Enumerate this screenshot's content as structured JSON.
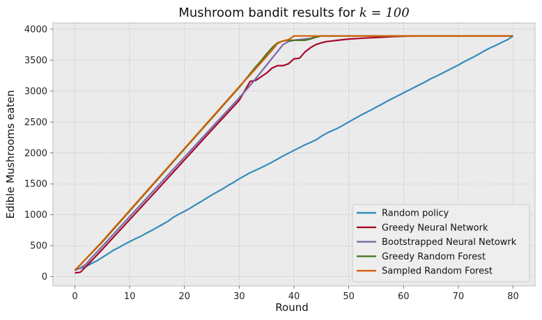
{
  "chart_data": {
    "type": "line",
    "title": "Mushroom bandit results for ",
    "title_math": "k = 100",
    "xlabel": "Round",
    "ylabel": "Edible Mushrooms eaten",
    "xlim": [
      -4,
      84
    ],
    "ylim": [
      -150,
      4100
    ],
    "xticks": [
      0,
      10,
      20,
      30,
      40,
      50,
      60,
      70,
      80
    ],
    "yticks": [
      0,
      500,
      1000,
      1500,
      2000,
      2500,
      3000,
      3500,
      4000
    ],
    "grid": true,
    "legend_position": "lower-right",
    "series": [
      {
        "name": "Random policy",
        "color": "#348ABD",
        "x": [
          0,
          1,
          2,
          3,
          4,
          5,
          6,
          7,
          8,
          9,
          10,
          11,
          12,
          13,
          14,
          15,
          16,
          17,
          18,
          19,
          20,
          21,
          22,
          23,
          24,
          25,
          26,
          27,
          28,
          29,
          30,
          31,
          32,
          33,
          34,
          35,
          36,
          37,
          38,
          39,
          40,
          41,
          42,
          43,
          44,
          45,
          46,
          47,
          48,
          49,
          50,
          51,
          52,
          53,
          54,
          55,
          56,
          57,
          58,
          59,
          60,
          61,
          62,
          63,
          64,
          65,
          66,
          67,
          68,
          69,
          70,
          71,
          72,
          73,
          74,
          75,
          76,
          77,
          78,
          79,
          80
        ],
        "y": [
          110,
          135,
          160,
          210,
          255,
          310,
          365,
          425,
          470,
          520,
          565,
          610,
          650,
          700,
          745,
          795,
          845,
          895,
          960,
          1010,
          1055,
          1105,
          1160,
          1210,
          1265,
          1320,
          1370,
          1420,
          1475,
          1525,
          1580,
          1630,
          1680,
          1720,
          1760,
          1805,
          1850,
          1900,
          1950,
          1995,
          2040,
          2085,
          2130,
          2170,
          2210,
          2270,
          2320,
          2360,
          2400,
          2450,
          2500,
          2550,
          2600,
          2645,
          2690,
          2740,
          2785,
          2835,
          2880,
          2925,
          2970,
          3015,
          3060,
          3105,
          3150,
          3200,
          3240,
          3285,
          3330,
          3375,
          3420,
          3470,
          3515,
          3560,
          3610,
          3660,
          3705,
          3745,
          3790,
          3830,
          3890
        ]
      },
      {
        "name": "Greedy Neural Network",
        "color": "#A60628",
        "x": [
          0,
          1,
          2,
          3,
          5,
          10,
          15,
          20,
          25,
          30,
          32,
          33,
          34,
          35,
          36,
          37,
          38,
          39,
          40,
          41,
          42,
          43,
          44,
          45,
          46,
          47,
          48,
          49,
          50,
          52,
          54,
          56,
          58,
          60,
          62,
          65,
          70,
          75,
          80
        ],
        "y": [
          60,
          70,
          160,
          250,
          440,
          920,
          1400,
          1885,
          2370,
          2850,
          3155,
          3170,
          3230,
          3290,
          3370,
          3410,
          3410,
          3440,
          3520,
          3530,
          3630,
          3700,
          3750,
          3780,
          3800,
          3810,
          3820,
          3830,
          3840,
          3850,
          3860,
          3870,
          3880,
          3885,
          3890,
          3890,
          3890,
          3890,
          3890
        ]
      },
      {
        "name": "Bootstrapped Neural Netowrk",
        "color": "#7A68A6",
        "x": [
          0,
          1,
          2,
          3,
          5,
          10,
          15,
          20,
          25,
          30,
          32,
          33,
          34,
          35,
          36,
          37,
          38,
          39,
          40,
          41,
          42,
          43,
          44,
          45,
          50,
          55,
          60,
          70,
          80
        ],
        "y": [
          100,
          140,
          200,
          300,
          490,
          970,
          1450,
          1930,
          2410,
          2890,
          3090,
          3200,
          3310,
          3420,
          3530,
          3640,
          3750,
          3800,
          3820,
          3830,
          3840,
          3850,
          3880,
          3890,
          3890,
          3890,
          3890,
          3890,
          3890
        ]
      },
      {
        "name": "Greedy Random Forest",
        "color": "#467821",
        "x": [
          0,
          5,
          10,
          15,
          20,
          25,
          30,
          33,
          34,
          35,
          36,
          37,
          38,
          39,
          40,
          41,
          42,
          43,
          44,
          45,
          50,
          55,
          60,
          70,
          80
        ],
        "y": [
          100,
          560,
          1060,
          1560,
          2060,
          2560,
          3060,
          3390,
          3490,
          3600,
          3700,
          3780,
          3810,
          3820,
          3820,
          3820,
          3820,
          3840,
          3870,
          3890,
          3890,
          3890,
          3890,
          3890,
          3890
        ]
      },
      {
        "name": "Sampled Random Forest",
        "color": "#D55E00",
        "x": [
          0,
          5,
          10,
          15,
          20,
          25,
          30,
          33,
          34,
          35,
          36,
          37,
          38,
          39,
          40,
          41,
          42,
          43,
          44,
          45,
          50,
          60,
          70,
          80
        ],
        "y": [
          100,
          570,
          1070,
          1570,
          2070,
          2570,
          3070,
          3360,
          3460,
          3560,
          3660,
          3770,
          3810,
          3830,
          3890,
          3890,
          3890,
          3890,
          3890,
          3890,
          3890,
          3890,
          3890,
          3890
        ]
      }
    ]
  }
}
